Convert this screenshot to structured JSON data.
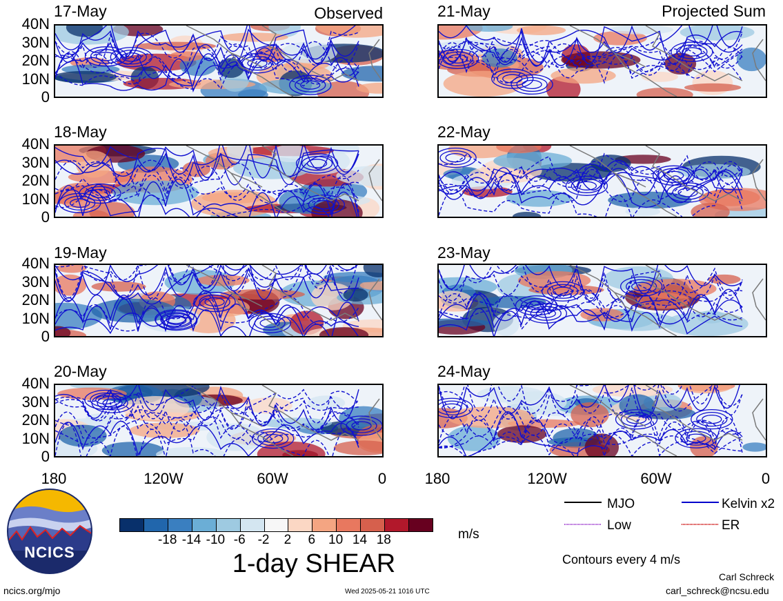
{
  "header": {
    "left_title": "Observed",
    "right_title": "Projected Sum"
  },
  "panels_left": [
    {
      "date": "17-May"
    },
    {
      "date": "18-May"
    },
    {
      "date": "19-May"
    },
    {
      "date": "20-May"
    }
  ],
  "panels_right": [
    {
      "date": "21-May"
    },
    {
      "date": "22-May"
    },
    {
      "date": "23-May"
    },
    {
      "date": "24-May"
    }
  ],
  "lat_ticks": [
    "40N",
    "30N",
    "20N",
    "10N",
    "0"
  ],
  "lon_ticks": [
    "180",
    "120W",
    "60W",
    "0"
  ],
  "colorbar": {
    "title": "1-day SHEAR",
    "units": "m/s",
    "tick_labels": [
      "-18",
      "-14",
      "-10",
      "-6",
      "-2",
      "2",
      "6",
      "10",
      "14",
      "18"
    ],
    "colors": [
      "#08306b",
      "#2166ac",
      "#3a7fc0",
      "#6baed6",
      "#9ecae1",
      "#d4e6f1",
      "#f7f7f7",
      "#fbd7c4",
      "#f4a582",
      "#e8785f",
      "#d6604d",
      "#b2182b",
      "#67001f"
    ]
  },
  "legend": {
    "items": [
      {
        "label": "MJO",
        "color": "#000000"
      },
      {
        "label": "Kelvin x2",
        "color": "#0000cc"
      },
      {
        "label": "Low",
        "color": "#9933cc"
      },
      {
        "label": "ER",
        "color": "#cc0000"
      }
    ],
    "note": "Contours every 4 m/s"
  },
  "logo": {
    "text": "NCICS"
  },
  "footer": {
    "url": "ncics.org/mjo",
    "timestamp": "Wed 2025-05-21 1016 UTC",
    "author": "Carl Schreck",
    "email": "carl_schreck@ncsu.edu"
  }
}
